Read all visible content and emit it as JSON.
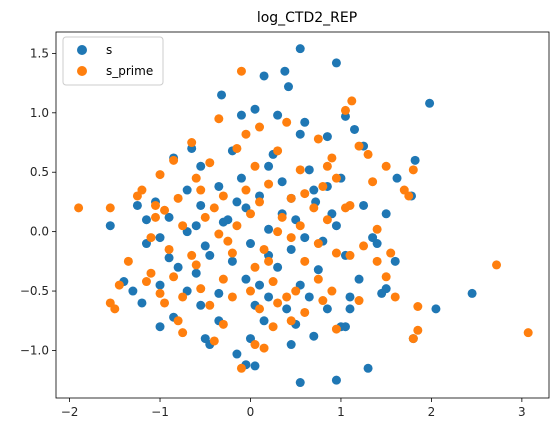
{
  "chart_data": {
    "type": "scatter",
    "title": "log_CTD2_REP",
    "xlabel": "",
    "ylabel": "",
    "xlim": [
      -2.15,
      3.3
    ],
    "ylim": [
      -1.4,
      1.68
    ],
    "xticks": [
      -2,
      -1,
      0,
      1,
      2,
      3
    ],
    "yticks": [
      -1.0,
      -0.5,
      0.0,
      0.5,
      1.0,
      1.5
    ],
    "xtick_labels": [
      "−2",
      "−1",
      "0",
      "1",
      "2",
      "3"
    ],
    "ytick_labels": [
      "−1.0",
      "−0.5",
      "0.0",
      "0.5",
      "1.0",
      "1.5"
    ],
    "grid": false,
    "legend_position": "top-left",
    "series": [
      {
        "name": "s",
        "color": "#1f77b4",
        "points": [
          [
            0.55,
            1.54
          ],
          [
            0.95,
            1.42
          ],
          [
            1.98,
            1.08
          ],
          [
            0.15,
            1.31
          ],
          [
            -0.32,
            1.15
          ],
          [
            0.38,
            1.35
          ],
          [
            0.42,
            1.22
          ],
          [
            0.05,
            1.03
          ],
          [
            -0.1,
            0.98
          ],
          [
            0.3,
            0.98
          ],
          [
            0.6,
            0.92
          ],
          [
            1.05,
            0.97
          ],
          [
            1.15,
            0.86
          ],
          [
            0.85,
            0.8
          ],
          [
            1.25,
            0.72
          ],
          [
            0.55,
            0.82
          ],
          [
            1.82,
            0.6
          ],
          [
            1.62,
            0.45
          ],
          [
            -0.85,
            0.62
          ],
          [
            -0.55,
            0.55
          ],
          [
            -0.2,
            0.68
          ],
          [
            0.2,
            0.55
          ],
          [
            0.65,
            0.52
          ],
          [
            1.0,
            0.45
          ],
          [
            0.85,
            0.38
          ],
          [
            0.35,
            0.42
          ],
          [
            -0.35,
            0.38
          ],
          [
            -0.7,
            0.35
          ],
          [
            -1.05,
            0.25
          ],
          [
            1.78,
            0.3
          ],
          [
            1.25,
            0.22
          ],
          [
            0.72,
            0.25
          ],
          [
            0.45,
            0.28
          ],
          [
            0.1,
            0.3
          ],
          [
            -0.15,
            0.25
          ],
          [
            -0.55,
            0.22
          ],
          [
            -0.9,
            0.12
          ],
          [
            -1.15,
            0.1
          ],
          [
            -1.55,
            0.05
          ],
          [
            0.95,
            0.05
          ],
          [
            1.35,
            -0.05
          ],
          [
            0.5,
            0.1
          ],
          [
            -0.3,
            0.08
          ],
          [
            0.2,
            0.02
          ],
          [
            -0.7,
            0.0
          ],
          [
            -1.0,
            -0.05
          ],
          [
            0.8,
            -0.08
          ],
          [
            1.4,
            -0.1
          ],
          [
            -1.15,
            -0.1
          ],
          [
            -0.5,
            -0.12
          ],
          [
            0.0,
            -0.1
          ],
          [
            0.45,
            -0.15
          ],
          [
            1.05,
            -0.2
          ],
          [
            -0.9,
            -0.22
          ],
          [
            -0.2,
            -0.25
          ],
          [
            0.3,
            -0.3
          ],
          [
            0.75,
            -0.32
          ],
          [
            1.6,
            -0.25
          ],
          [
            -1.4,
            -0.42
          ],
          [
            -1.3,
            -0.5
          ],
          [
            -0.6,
            -0.35
          ],
          [
            -0.05,
            -0.4
          ],
          [
            0.55,
            -0.45
          ],
          [
            1.2,
            -0.4
          ],
          [
            1.5,
            -0.48
          ],
          [
            -1.0,
            -0.45
          ],
          [
            -0.7,
            -0.5
          ],
          [
            -0.35,
            -0.52
          ],
          [
            0.2,
            -0.55
          ],
          [
            0.65,
            -0.55
          ],
          [
            1.1,
            -0.55
          ],
          [
            1.45,
            -0.52
          ],
          [
            -1.2,
            -0.6
          ],
          [
            -0.55,
            -0.62
          ],
          [
            0.05,
            -0.62
          ],
          [
            0.4,
            -0.65
          ],
          [
            0.85,
            -0.65
          ],
          [
            1.1,
            -0.65
          ],
          [
            2.05,
            -0.65
          ],
          [
            -0.85,
            -0.72
          ],
          [
            -0.35,
            -0.75
          ],
          [
            0.15,
            -0.75
          ],
          [
            0.5,
            -0.78
          ],
          [
            1.0,
            -0.8
          ],
          [
            1.05,
            -0.8
          ],
          [
            -1.0,
            -0.8
          ],
          [
            -0.5,
            -0.9
          ],
          [
            -0.45,
            -0.95
          ],
          [
            0.0,
            -0.9
          ],
          [
            0.7,
            -0.88
          ],
          [
            1.3,
            -1.15
          ],
          [
            0.95,
            -1.25
          ],
          [
            0.55,
            -1.27
          ],
          [
            -0.15,
            -1.03
          ],
          [
            0.05,
            -1.13
          ],
          [
            -0.05,
            -1.12
          ],
          [
            1.8,
            -0.9
          ],
          [
            0.45,
            -0.95
          ],
          [
            0.2,
            -0.2
          ],
          [
            -0.25,
            0.1
          ],
          [
            0.1,
            -0.45
          ],
          [
            -0.45,
            -0.2
          ],
          [
            0.35,
            0.15
          ],
          [
            -0.1,
            0.45
          ],
          [
            0.6,
            -0.05
          ],
          [
            -0.8,
            -0.3
          ],
          [
            0.9,
            0.15
          ],
          [
            -0.6,
            0.05
          ],
          [
            0.25,
            0.65
          ],
          [
            -0.05,
            0.2
          ],
          [
            0.7,
            0.35
          ],
          [
            -1.25,
            0.22
          ],
          [
            -0.65,
            0.7
          ],
          [
            1.5,
            0.15
          ],
          [
            2.45,
            -0.52
          ]
        ]
      },
      {
        "name": "s_prime",
        "color": "#ff7f0e",
        "points": [
          [
            -0.1,
            1.35
          ],
          [
            1.12,
            1.1
          ],
          [
            1.05,
            1.02
          ],
          [
            -0.35,
            0.95
          ],
          [
            0.4,
            0.92
          ],
          [
            0.1,
            0.88
          ],
          [
            -0.05,
            0.82
          ],
          [
            0.75,
            0.78
          ],
          [
            1.2,
            0.72
          ],
          [
            -0.65,
            0.75
          ],
          [
            -0.15,
            0.7
          ],
          [
            0.3,
            0.68
          ],
          [
            0.9,
            0.62
          ],
          [
            1.3,
            0.65
          ],
          [
            1.5,
            0.55
          ],
          [
            -0.85,
            0.6
          ],
          [
            -0.45,
            0.58
          ],
          [
            0.05,
            0.55
          ],
          [
            0.55,
            0.52
          ],
          [
            1.8,
            0.52
          ],
          [
            1.35,
            0.42
          ],
          [
            0.95,
            0.45
          ],
          [
            -1.0,
            0.48
          ],
          [
            -0.6,
            0.45
          ],
          [
            0.2,
            0.4
          ],
          [
            0.8,
            0.38
          ],
          [
            1.7,
            0.35
          ],
          [
            1.75,
            0.3
          ],
          [
            -1.2,
            0.35
          ],
          [
            -1.25,
            0.3
          ],
          [
            -0.8,
            0.28
          ],
          [
            -0.3,
            0.3
          ],
          [
            0.45,
            0.28
          ],
          [
            1.1,
            0.22
          ],
          [
            -1.05,
            0.22
          ],
          [
            -0.95,
            0.18
          ],
          [
            0.7,
            0.2
          ],
          [
            1.05,
            0.2
          ],
          [
            -1.9,
            0.2
          ],
          [
            -1.55,
            0.2
          ],
          [
            -0.5,
            0.12
          ],
          [
            0.0,
            0.15
          ],
          [
            0.85,
            0.1
          ],
          [
            1.4,
            0.02
          ],
          [
            -1.05,
            0.12
          ],
          [
            -0.75,
            0.05
          ],
          [
            0.3,
            0.0
          ],
          [
            0.55,
            0.05
          ],
          [
            -1.1,
            -0.05
          ],
          [
            -0.35,
            -0.02
          ],
          [
            0.75,
            -0.1
          ],
          [
            1.25,
            -0.12
          ],
          [
            -0.9,
            -0.15
          ],
          [
            -0.2,
            -0.18
          ],
          [
            0.15,
            -0.15
          ],
          [
            0.95,
            -0.18
          ],
          [
            1.1,
            -0.2
          ],
          [
            -1.35,
            -0.25
          ],
          [
            -0.6,
            -0.28
          ],
          [
            0.05,
            -0.3
          ],
          [
            0.6,
            -0.25
          ],
          [
            1.4,
            -0.25
          ],
          [
            2.72,
            -0.28
          ],
          [
            -1.1,
            -0.35
          ],
          [
            -0.85,
            -0.38
          ],
          [
            -0.3,
            -0.4
          ],
          [
            0.25,
            -0.42
          ],
          [
            0.75,
            -0.4
          ],
          [
            1.5,
            -0.38
          ],
          [
            -1.15,
            -0.42
          ],
          [
            -1.45,
            -0.45
          ],
          [
            -0.55,
            -0.48
          ],
          [
            0.0,
            -0.5
          ],
          [
            0.5,
            -0.5
          ],
          [
            0.9,
            -0.5
          ],
          [
            -1.0,
            -0.52
          ],
          [
            -0.75,
            -0.55
          ],
          [
            -0.2,
            -0.55
          ],
          [
            0.4,
            -0.55
          ],
          [
            0.8,
            -0.58
          ],
          [
            1.2,
            -0.58
          ],
          [
            -1.55,
            -0.6
          ],
          [
            -1.5,
            -0.65
          ],
          [
            -0.95,
            -0.6
          ],
          [
            -0.45,
            -0.62
          ],
          [
            0.1,
            -0.65
          ],
          [
            0.6,
            -0.68
          ],
          [
            1.85,
            -0.63
          ],
          [
            -0.8,
            -0.75
          ],
          [
            -0.3,
            -0.78
          ],
          [
            0.25,
            -0.8
          ],
          [
            0.45,
            -0.75
          ],
          [
            0.95,
            -0.82
          ],
          [
            1.85,
            -0.83
          ],
          [
            3.07,
            -0.85
          ],
          [
            -0.75,
            -0.85
          ],
          [
            -0.4,
            -0.92
          ],
          [
            0.15,
            -0.98
          ],
          [
            -0.1,
            -1.15
          ],
          [
            0.05,
            -0.95
          ],
          [
            1.8,
            -0.9
          ],
          [
            -0.05,
            0.35
          ],
          [
            0.35,
            0.12
          ],
          [
            -0.25,
            -0.08
          ],
          [
            0.1,
            0.25
          ],
          [
            -0.4,
            0.2
          ],
          [
            0.6,
            0.32
          ],
          [
            0.2,
            -0.25
          ],
          [
            -0.15,
            0.05
          ],
          [
            0.45,
            -0.05
          ],
          [
            -0.65,
            -0.2
          ],
          [
            0.85,
            0.55
          ],
          [
            -0.55,
            0.35
          ],
          [
            0.3,
            -0.6
          ],
          [
            1.6,
            -0.55
          ],
          [
            1.55,
            -0.18
          ]
        ]
      }
    ]
  }
}
